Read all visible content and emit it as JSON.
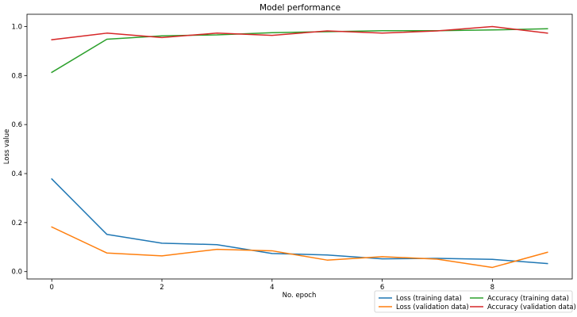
{
  "chart_data": {
    "type": "line",
    "title": "Model performance",
    "xlabel": "No. epoch",
    "ylabel": "Loss value",
    "xlim": [
      -0.45,
      9.45
    ],
    "ylim": [
      -0.03,
      1.05
    ],
    "x_ticks": [
      0,
      2,
      4,
      6,
      8
    ],
    "x_tick_labels": [
      "0",
      "2",
      "4",
      "6",
      "8"
    ],
    "y_ticks": [
      0.0,
      0.2,
      0.4,
      0.6,
      0.8,
      1.0
    ],
    "y_tick_labels": [
      "0.0",
      "0.2",
      "0.4",
      "0.6",
      "0.8",
      "1.0"
    ],
    "grid": false,
    "legend_position": "lower-right",
    "legend_columns": 2,
    "x": [
      0,
      1,
      2,
      3,
      4,
      5,
      6,
      7,
      8,
      9
    ],
    "series": [
      {
        "name": "Loss (training data)",
        "color": "#1f77b4",
        "values": [
          0.378,
          0.152,
          0.116,
          0.11,
          0.074,
          0.068,
          0.052,
          0.054,
          0.05,
          0.033
        ]
      },
      {
        "name": "Loss (validation data)",
        "color": "#ff7f0e",
        "values": [
          0.182,
          0.076,
          0.064,
          0.091,
          0.085,
          0.047,
          0.061,
          0.051,
          0.017,
          0.079
        ]
      },
      {
        "name": "Accuracy (training data)",
        "color": "#2ca02c",
        "values": [
          0.813,
          0.948,
          0.962,
          0.966,
          0.975,
          0.979,
          0.983,
          0.983,
          0.986,
          0.991
        ]
      },
      {
        "name": "Accuracy (validation data)",
        "color": "#d62728",
        "values": [
          0.946,
          0.973,
          0.955,
          0.973,
          0.964,
          0.982,
          0.973,
          0.982,
          1.0,
          0.973
        ]
      }
    ]
  }
}
